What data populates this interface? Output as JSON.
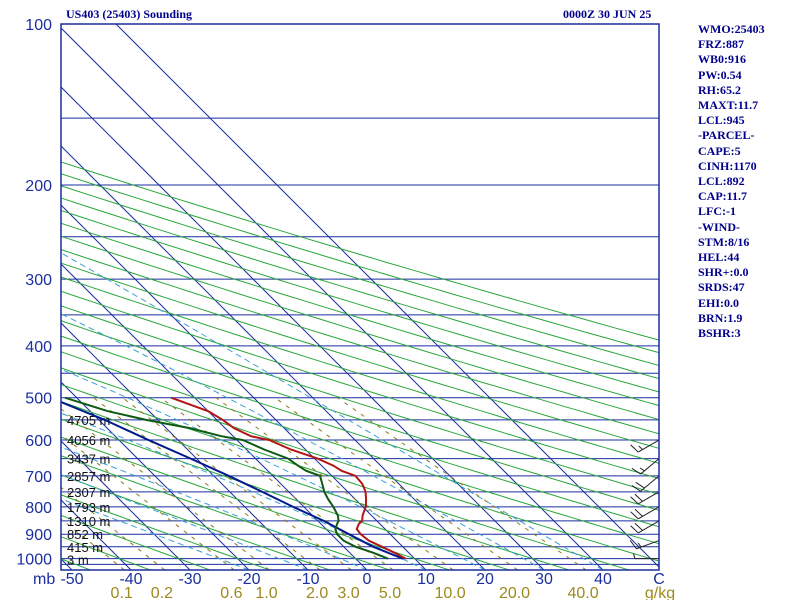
{
  "header": {
    "station": "US403 (25403) Sounding",
    "time": "0000Z 30 JUN 25"
  },
  "stats": [
    "WMO:25403",
    "FRZ:887",
    "WB0:916",
    "PW:0.54",
    "RH:65.2",
    "MAXT:11.7",
    "LCL:945",
    "-PARCEL-",
    "CAPE:5",
    "CINH:1170",
    "LCL:892",
    "CAP:11.7",
    "LFC:-1",
    "-WIND-",
    "STM:8/16",
    "HEL:44",
    "SHR+:0.0",
    "SRDS:47",
    "EHI:0.0",
    "BRN:1.9",
    "BSHR:3"
  ],
  "colors": {
    "frame": "#1b2f9e",
    "isobar": "#1a2ea0",
    "isotherm": "#1a2ea0",
    "dry_adiabat": "#2aa63a",
    "moist_adiabat": "#3aa0d8",
    "mixing_ratio": "#8c7a1a",
    "temperature": "#b31515",
    "dewpoint": "#0e5a12",
    "parcel": "#001a8c",
    "wind": "#222222"
  },
  "chart_data": {
    "type": "skew-t log-p sounding",
    "title": "US403 (25403) Sounding",
    "time": "0000Z 30 JUN 25",
    "xlabel": "C",
    "ylabel": "mb",
    "pressure_ticks": [
      100,
      200,
      300,
      400,
      500,
      600,
      700,
      800,
      900,
      1000
    ],
    "temperature_ticks": [
      -50,
      -40,
      -30,
      -20,
      -10,
      0,
      10,
      20,
      30,
      40
    ],
    "mixing_ratio_ticks": [
      "0.1",
      "0.2",
      "0.6",
      "1.0",
      "2.0",
      "3.0",
      "5.0",
      "10.0",
      "20.0",
      "40.0"
    ],
    "mixing_ratio_units": "g/kg",
    "temperature_unit": "C",
    "pressure_unit": "mb",
    "height_labels": [
      {
        "p": 1003,
        "label": "3 m"
      },
      {
        "p": 950,
        "label": "415 m"
      },
      {
        "p": 900,
        "label": "852 m"
      },
      {
        "p": 850,
        "label": "1310 m"
      },
      {
        "p": 800,
        "label": "1793 m"
      },
      {
        "p": 750,
        "label": "2307 m"
      },
      {
        "p": 700,
        "label": "2857 m"
      },
      {
        "p": 650,
        "label": "3437 m"
      },
      {
        "p": 600,
        "label": "4056 m"
      },
      {
        "p": 550,
        "label": "4705 m"
      }
    ],
    "temperature_profile": {
      "p": [
        1000,
        975,
        950,
        925,
        900,
        880,
        860,
        850,
        830,
        800,
        775,
        750,
        725,
        700,
        685,
        670,
        650,
        625,
        600,
        590,
        570,
        550,
        530,
        500
      ],
      "t": [
        8.5,
        7.6,
        6.5,
        5.3,
        5.0,
        5.2,
        6.5,
        7.5,
        8.5,
        10.5,
        11.8,
        13.0,
        13.8,
        14.0,
        12.5,
        12.0,
        10.5,
        7.5,
        5.5,
        3.0,
        1.5,
        1.0,
        0.0,
        -4.0
      ]
    },
    "dewpoint_profile": {
      "p": [
        1000,
        975,
        950,
        925,
        900,
        880,
        860,
        850,
        830,
        800,
        775,
        750,
        725,
        700,
        685,
        670,
        650,
        625,
        600,
        590,
        570,
        550,
        530,
        500
      ],
      "td": [
        5.5,
        4.0,
        2.0,
        1.0,
        1.0,
        1.6,
        2.8,
        3.5,
        4.3,
        5.0,
        5.4,
        6.0,
        7.0,
        8.0,
        6.5,
        6.0,
        5.5,
        3.0,
        1.0,
        -2.0,
        -6.0,
        -12.0,
        -17.0,
        -22.0
      ]
    },
    "parcel_profile": {
      "p": [
        1000,
        950,
        900,
        850,
        800,
        750,
        700,
        650,
        600,
        550,
        500,
        450,
        400,
        350,
        300,
        250,
        200,
        150,
        120
      ],
      "t": [
        8.0,
        5.0,
        3.0,
        1.0,
        -1.8,
        -4.5,
        -7.5,
        -11.0,
        -15.0,
        -19.0,
        -24.5,
        -30.0,
        -36.0,
        -43.0,
        -51.0,
        -60.0,
        -71.0,
        -84.0,
        -93.5
      ]
    },
    "wind_barbs": [
      {
        "p": 1000,
        "dir": 270,
        "spd": 5
      },
      {
        "p": 925,
        "dir": 250,
        "spd": 15
      },
      {
        "p": 850,
        "dir": 240,
        "spd": 20
      },
      {
        "p": 800,
        "dir": 240,
        "spd": 20
      },
      {
        "p": 750,
        "dir": 240,
        "spd": 20
      },
      {
        "p": 700,
        "dir": 230,
        "spd": 20
      },
      {
        "p": 650,
        "dir": 230,
        "spd": 15
      },
      {
        "p": 600,
        "dir": 240,
        "spd": 15
      }
    ],
    "xlim": [
      -50,
      50
    ],
    "ylim": [
      1050,
      100
    ],
    "grid": true
  }
}
